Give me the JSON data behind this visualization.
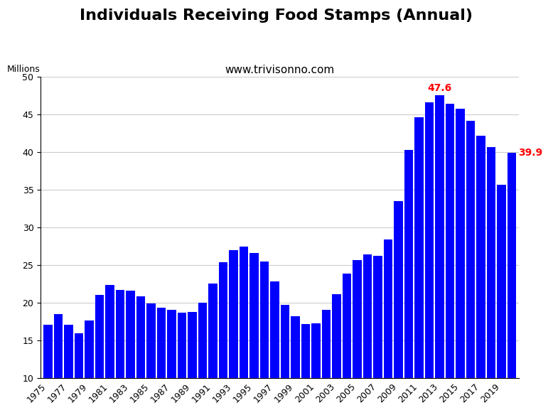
{
  "title": "Individuals Receiving Food Stamps (Annual)",
  "subtitle": "www.trivisonno.com",
  "ylabel": "Millions",
  "bar_color": "#0000FF",
  "background_color": "#FFFFFF",
  "years": [
    1975,
    1976,
    1977,
    1978,
    1979,
    1980,
    1981,
    1982,
    1983,
    1984,
    1985,
    1986,
    1987,
    1988,
    1989,
    1990,
    1991,
    1992,
    1993,
    1994,
    1995,
    1996,
    1997,
    1998,
    1999,
    2000,
    2001,
    2002,
    2003,
    2004,
    2005,
    2006,
    2007,
    2008,
    2009,
    2010,
    2011,
    2012,
    2013,
    2014,
    2015,
    2016,
    2017,
    2018,
    2019,
    2020
  ],
  "values": [
    17.1,
    18.5,
    17.1,
    16.0,
    17.7,
    21.1,
    22.4,
    21.7,
    21.6,
    20.9,
    19.9,
    19.4,
    19.1,
    18.7,
    18.8,
    20.0,
    22.6,
    25.4,
    27.0,
    27.5,
    26.6,
    25.5,
    22.9,
    19.8,
    18.2,
    17.2,
    17.3,
    19.1,
    21.2,
    23.9,
    25.7,
    26.5,
    26.3,
    28.4,
    33.5,
    40.3,
    44.7,
    46.6,
    47.6,
    46.5,
    45.8,
    44.2,
    42.2,
    40.7,
    35.7,
    39.9
  ],
  "peak_year": 2013,
  "peak_value": 47.6,
  "last_year": 2020,
  "last_value": 39.9,
  "annotation_color": "#FF0000",
  "ylim": [
    10,
    50
  ],
  "yticks": [
    10,
    15,
    20,
    25,
    30,
    35,
    40,
    45,
    50
  ],
  "grid_color": "#CCCCCC",
  "title_fontsize": 16,
  "subtitle_fontsize": 11,
  "ylabel_fontsize": 9,
  "tick_fontsize": 9,
  "annotation_fontsize": 10
}
